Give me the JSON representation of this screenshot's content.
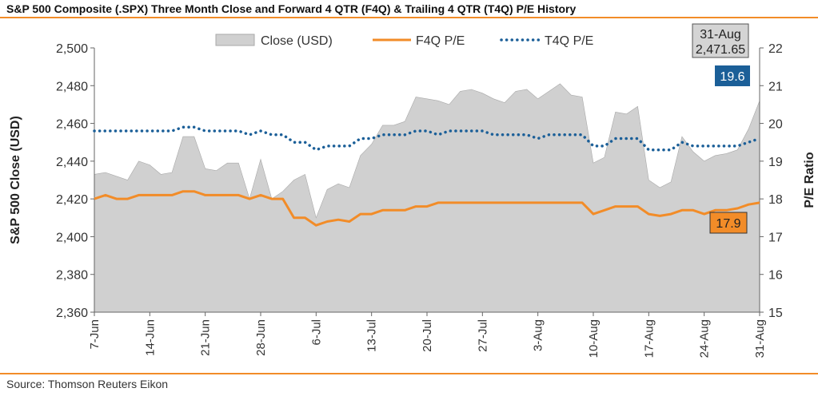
{
  "title": "S&P 500 Composite (.SPX) Three Month Close and Forward 4 QTR (F4Q) & Trailing 4 QTR (T4Q) P/E History",
  "source": "Source: Thomson Reuters Eikon",
  "chart_data": {
    "type": "area",
    "ylabel": "S&P 500 Close (USD)",
    "y2label": "P/E Ratio",
    "ylim": [
      2360,
      2500
    ],
    "y2lim": [
      15,
      22
    ],
    "yticks": [
      "2,360",
      "2,380",
      "2,400",
      "2,420",
      "2,440",
      "2,460",
      "2,480",
      "2,500"
    ],
    "y2ticks": [
      "15",
      "16",
      "17",
      "18",
      "19",
      "20",
      "21",
      "22"
    ],
    "x_tick_labels": [
      "7-Jun",
      "14-Jun",
      "21-Jun",
      "28-Jun",
      "6-Jul",
      "13-Jul",
      "20-Jul",
      "27-Jul",
      "3-Aug",
      "10-Aug",
      "17-Aug",
      "24-Aug",
      "31-Aug"
    ],
    "x_tick_index": [
      0,
      5,
      10,
      15,
      20,
      25,
      30,
      35,
      40,
      45,
      50,
      55,
      60
    ],
    "legend": [
      "Close (USD)",
      "F4Q P/E",
      "T4Q P/E"
    ],
    "series": [
      {
        "name": "Close (USD)",
        "axis": "left",
        "color": "#d0d0d0",
        "values": [
          2433,
          2434,
          2432,
          2430,
          2440,
          2438,
          2433,
          2434,
          2453,
          2453,
          2436,
          2435,
          2439,
          2439,
          2420,
          2441,
          2420,
          2424,
          2430,
          2433,
          2410,
          2425,
          2428,
          2426,
          2443,
          2449,
          2459,
          2459,
          2461,
          2474,
          2473,
          2472,
          2470,
          2477,
          2478,
          2476,
          2473,
          2471,
          2477,
          2478,
          2473,
          2477,
          2481,
          2475,
          2474,
          2439,
          2442,
          2466,
          2465,
          2469,
          2430,
          2426,
          2429,
          2453,
          2445,
          2440,
          2443,
          2444,
          2446,
          2457,
          2472
        ]
      },
      {
        "name": "F4Q P/E",
        "axis": "right",
        "color": "#f28c28",
        "values": [
          18.0,
          18.1,
          18.0,
          18.0,
          18.1,
          18.1,
          18.1,
          18.1,
          18.2,
          18.2,
          18.1,
          18.1,
          18.1,
          18.1,
          18.0,
          18.1,
          18.0,
          18.0,
          17.5,
          17.5,
          17.3,
          17.4,
          17.45,
          17.4,
          17.6,
          17.6,
          17.7,
          17.7,
          17.7,
          17.8,
          17.8,
          17.9,
          17.9,
          17.9,
          17.9,
          17.9,
          17.9,
          17.9,
          17.9,
          17.9,
          17.9,
          17.9,
          17.9,
          17.9,
          17.9,
          17.6,
          17.7,
          17.8,
          17.8,
          17.8,
          17.6,
          17.55,
          17.6,
          17.7,
          17.7,
          17.6,
          17.7,
          17.7,
          17.75,
          17.85,
          17.9
        ]
      },
      {
        "name": "T4Q P/E",
        "axis": "right",
        "color": "#1b5f98",
        "values": [
          19.8,
          19.8,
          19.8,
          19.8,
          19.8,
          19.8,
          19.8,
          19.8,
          19.9,
          19.9,
          19.8,
          19.8,
          19.8,
          19.8,
          19.7,
          19.8,
          19.7,
          19.7,
          19.5,
          19.5,
          19.3,
          19.4,
          19.4,
          19.4,
          19.6,
          19.6,
          19.7,
          19.7,
          19.7,
          19.8,
          19.8,
          19.7,
          19.8,
          19.8,
          19.8,
          19.8,
          19.7,
          19.7,
          19.7,
          19.7,
          19.6,
          19.7,
          19.7,
          19.7,
          19.7,
          19.4,
          19.4,
          19.6,
          19.6,
          19.6,
          19.3,
          19.3,
          19.3,
          19.5,
          19.4,
          19.4,
          19.4,
          19.4,
          19.4,
          19.5,
          19.6
        ]
      }
    ],
    "annotations": {
      "last_date": "31-Aug",
      "last_close": "2,471.65",
      "t4q_last": "19.6",
      "f4q_last": "17.9"
    }
  }
}
